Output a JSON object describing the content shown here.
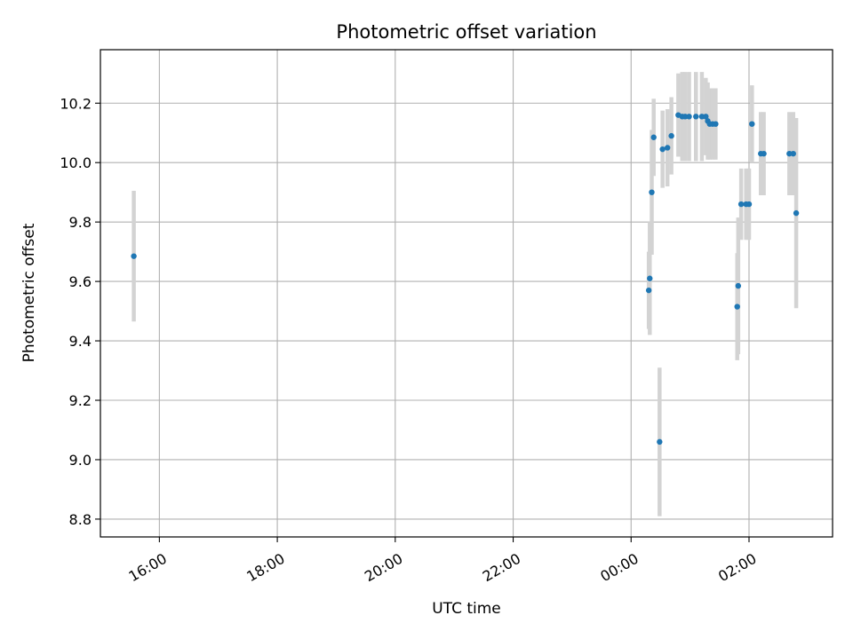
{
  "chart_data": {
    "type": "scatter",
    "title": "Photometric offset variation",
    "xlabel": "UTC time",
    "ylabel": "Photometric offset",
    "x_unit": "UTC time (HH:MM)",
    "xlim": [
      "15:00",
      "03:25"
    ],
    "ylim": [
      8.74,
      10.38
    ],
    "x_ticks": [
      "16:00",
      "18:00",
      "20:00",
      "22:00",
      "00:00",
      "02:00"
    ],
    "y_ticks": [
      8.8,
      9.0,
      9.2,
      9.4,
      9.6,
      9.8,
      10.0,
      10.2
    ],
    "y_tick_labels": [
      "8.8",
      "9.0",
      "9.2",
      "9.4",
      "9.6",
      "9.8",
      "10.0",
      "10.2"
    ],
    "grid": true,
    "point_color": "#1f77b4",
    "errorbar_color": "#d3d3d3",
    "points": [
      {
        "t": "15:34",
        "y": 9.685,
        "err": 0.22
      },
      {
        "t": "00:18",
        "y": 9.57,
        "err": 0.13
      },
      {
        "t": "00:19",
        "y": 9.61,
        "err": 0.19
      },
      {
        "t": "00:21",
        "y": 9.9,
        "err": 0.21
      },
      {
        "t": "00:23",
        "y": 10.085,
        "err": 0.13
      },
      {
        "t": "00:29",
        "y": 9.06,
        "err": 0.25
      },
      {
        "t": "00:32",
        "y": 10.045,
        "err": 0.13
      },
      {
        "t": "00:37",
        "y": 10.05,
        "err": 0.13
      },
      {
        "t": "00:41",
        "y": 10.09,
        "err": 0.13
      },
      {
        "t": "00:48",
        "y": 10.16,
        "err": 0.14
      },
      {
        "t": "00:52",
        "y": 10.155,
        "err": 0.15
      },
      {
        "t": "00:55",
        "y": 10.155,
        "err": 0.15
      },
      {
        "t": "00:59",
        "y": 10.155,
        "err": 0.15
      },
      {
        "t": "01:06",
        "y": 10.155,
        "err": 0.15
      },
      {
        "t": "01:12",
        "y": 10.155,
        "err": 0.15
      },
      {
        "t": "01:16",
        "y": 10.155,
        "err": 0.13
      },
      {
        "t": "01:18",
        "y": 10.14,
        "err": 0.13
      },
      {
        "t": "01:20",
        "y": 10.13,
        "err": 0.12
      },
      {
        "t": "01:23",
        "y": 10.13,
        "err": 0.12
      },
      {
        "t": "01:26",
        "y": 10.13,
        "err": 0.12
      },
      {
        "t": "01:48",
        "y": 9.515,
        "err": 0.18
      },
      {
        "t": "01:49",
        "y": 9.585,
        "err": 0.23
      },
      {
        "t": "01:52",
        "y": 9.86,
        "err": 0.12
      },
      {
        "t": "01:57",
        "y": 9.86,
        "err": 0.12
      },
      {
        "t": "02:00",
        "y": 9.86,
        "err": 0.12
      },
      {
        "t": "02:03",
        "y": 10.13,
        "err": 0.13
      },
      {
        "t": "02:12",
        "y": 10.03,
        "err": 0.14
      },
      {
        "t": "02:15",
        "y": 10.03,
        "err": 0.14
      },
      {
        "t": "02:41",
        "y": 10.03,
        "err": 0.14
      },
      {
        "t": "02:45",
        "y": 10.03,
        "err": 0.14
      },
      {
        "t": "02:48",
        "y": 9.83,
        "err": 0.32
      }
    ]
  }
}
